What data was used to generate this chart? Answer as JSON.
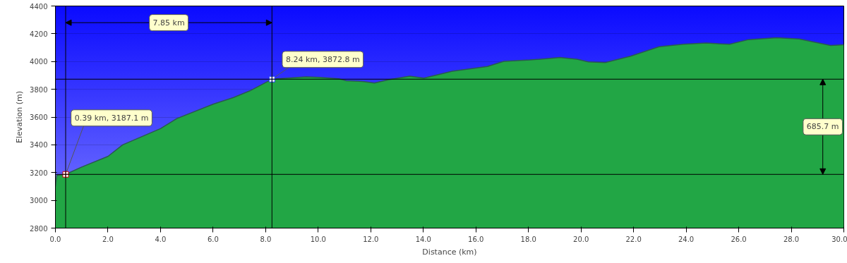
{
  "chart_data": {
    "type": "area",
    "xlabel": "Distance (km)",
    "ylabel": "Elevation (m)",
    "x": [
      0.0,
      0.05,
      0.39,
      1.0,
      2.0,
      2.56,
      4.0,
      4.62,
      6.0,
      6.78,
      7.4,
      8.24,
      8.65,
      9.54,
      10.07,
      10.8,
      11.07,
      11.68,
      12.14,
      12.68,
      13.48,
      14.02,
      15.1,
      16.44,
      17.06,
      18.05,
      19.2,
      19.85,
      20.28,
      20.92,
      21.9,
      22.97,
      23.88,
      24.76,
      25.65,
      26.37,
      27.44,
      28.3,
      29.5,
      30.0
    ],
    "series": [
      {
        "color": "#22a645",
        "values": [
          3100,
          3180,
          3187.1,
          3240,
          3317,
          3400,
          3517,
          3589,
          3693,
          3741,
          3789,
          3872.8,
          3878,
          3890,
          3886,
          3875,
          3862,
          3857,
          3845,
          3869,
          3895,
          3881,
          3930,
          3964,
          4001,
          4011,
          4029,
          4017,
          3997,
          3992,
          4039,
          4107,
          4124,
          4133,
          4124,
          4158,
          4172,
          4162,
          4116,
          4121
        ]
      }
    ],
    "xlim": [
      0,
      30
    ],
    "ylim": [
      2800,
      4400
    ],
    "xticks": [
      {
        "value": 0,
        "label": "0.0"
      },
      {
        "value": 2,
        "label": "2.0"
      },
      {
        "value": 4,
        "label": "4.0"
      },
      {
        "value": 6,
        "label": "6.0"
      },
      {
        "value": 8,
        "label": "8.0"
      },
      {
        "value": 10,
        "label": "10.0"
      },
      {
        "value": 12,
        "label": "12.0"
      },
      {
        "value": 14,
        "label": "14.0"
      },
      {
        "value": 16,
        "label": "16.0"
      },
      {
        "value": 18,
        "label": "18.0"
      },
      {
        "value": 20,
        "label": "20.0"
      },
      {
        "value": 22,
        "label": "22.0"
      },
      {
        "value": 24,
        "label": "24.0"
      },
      {
        "value": 26,
        "label": "26.0"
      },
      {
        "value": 28,
        "label": "28.0"
      },
      {
        "value": 30,
        "label": "30.0"
      }
    ],
    "yticks": [
      2800,
      3000,
      3200,
      3400,
      3600,
      3800,
      4000,
      4200,
      4400
    ],
    "grid": "y",
    "ref_lines": [
      {
        "axis": "x",
        "value": 0.39,
        "label": null,
        "color": "#000000"
      },
      {
        "axis": "x",
        "value": 8.24,
        "label": null,
        "color": "#000000"
      },
      {
        "axis": "y",
        "value": 3187.1,
        "label": null,
        "color": "#000000"
      },
      {
        "axis": "y",
        "value": 3872.8,
        "label": null,
        "color": "#000000"
      }
    ],
    "annotations": [
      {
        "text": "0.39 km, 3187.1 m",
        "x": 0.39,
        "y": 3187.1
      },
      {
        "text": "8.24 km, 3872.8 m",
        "x": 8.24,
        "y": 3872.8
      },
      "7.85 km",
      "685.7 m"
    ]
  }
}
